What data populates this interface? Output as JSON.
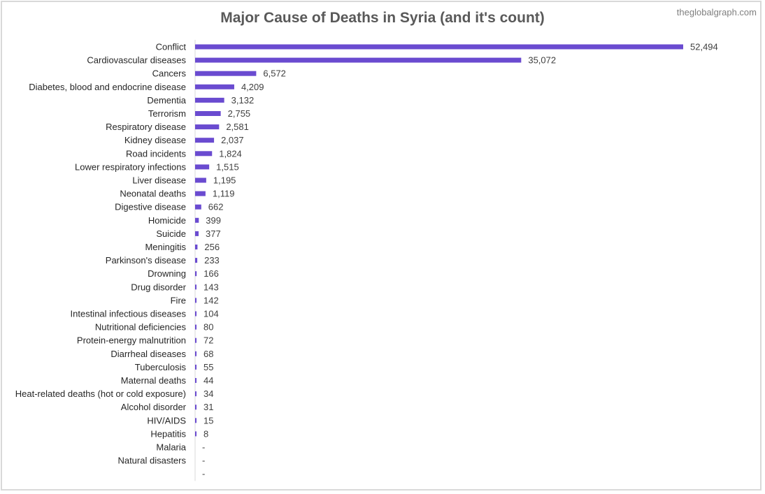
{
  "chart_data": {
    "type": "bar",
    "orientation": "horizontal",
    "title": "Major Cause of Deaths in Syria (and it's count)",
    "watermark": "theglobalgraph.com",
    "bar_color": "#6a4bd0",
    "categories": [
      "Conflict",
      "Cardiovascular diseases",
      "Cancers",
      "Diabetes, blood and endocrine disease",
      "Dementia",
      "Terrorism",
      "Respiratory disease",
      "Kidney disease",
      "Road incidents",
      "Lower respiratory infections",
      "Liver disease",
      "Neonatal deaths",
      "Digestive disease",
      "Homicide",
      "Suicide",
      "Meningitis",
      "Parkinson's disease",
      "Drowning",
      "Drug disorder",
      "Fire",
      "Intestinal infectious diseases",
      "Nutritional deficiencies",
      "Protein-energy malnutrition",
      "Diarrheal diseases",
      "Tuberculosis",
      "Maternal deaths",
      "Heat-related deaths (hot or cold exposure)",
      "Alcohol disorder",
      "HIV/AIDS",
      "Hepatitis",
      "Malaria",
      "Natural disasters",
      ""
    ],
    "values": [
      52494,
      35072,
      6572,
      4209,
      3132,
      2755,
      2581,
      2037,
      1824,
      1515,
      1195,
      1119,
      662,
      399,
      377,
      256,
      233,
      166,
      143,
      142,
      104,
      80,
      72,
      68,
      55,
      44,
      34,
      31,
      15,
      8,
      0,
      0,
      0
    ],
    "data_labels": [
      "52,494",
      "35,072",
      "6,572",
      "4,209",
      "3,132",
      "2,755",
      "2,581",
      "2,037",
      "1,824",
      "1,515",
      "1,195",
      "1,119",
      "662",
      "399",
      "377",
      "256",
      "233",
      "166",
      "143",
      "142",
      "104",
      "80",
      "72",
      "68",
      "55",
      "44",
      "34",
      "31",
      "15",
      "8",
      "-",
      "-",
      "-"
    ],
    "xlim": [
      0,
      52494
    ],
    "grid": false,
    "legend": "none"
  }
}
